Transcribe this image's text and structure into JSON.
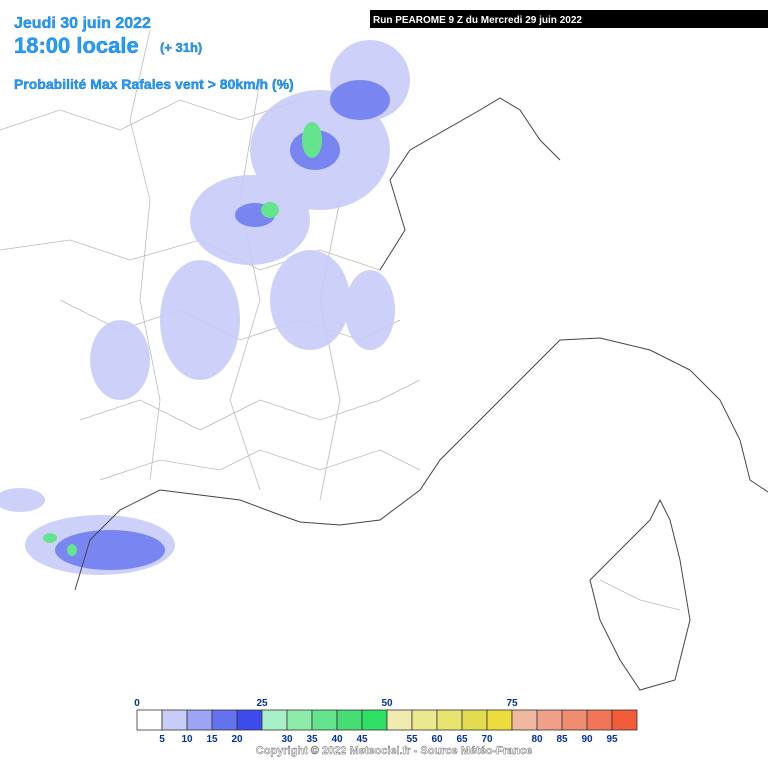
{
  "header": {
    "date": "Jeudi 30 juin 2022",
    "time": "18:00 locale",
    "lead": "(+ 31h)",
    "product": "Probabilité Max Rafales vent > 80km/h (%)"
  },
  "run_banner": "Run PEAROME 9 Z du Mercredi 29 juin 2022",
  "legend": {
    "colors": [
      "#ffffff",
      "#c8ccf8",
      "#9ca4f4",
      "#6472ee",
      "#3c4cec",
      "#a8f0c8",
      "#8ceca8",
      "#64e48c",
      "#48dc74",
      "#30e064",
      "#f0ecb0",
      "#ece890",
      "#e8e470",
      "#e4dc50",
      "#ecdc3c",
      "#f0b8a0",
      "#f0a088",
      "#f08c70",
      "#f07458",
      "#f05c38"
    ],
    "top_labels": [
      0,
      25,
      50,
      75
    ],
    "bottom_labels": [
      5,
      10,
      15,
      20,
      30,
      35,
      40,
      45,
      55,
      60,
      65,
      70,
      80,
      85,
      90,
      95
    ]
  },
  "copyright": "Copyright © 2022 Meteociel.fr - Source Météo-France"
}
